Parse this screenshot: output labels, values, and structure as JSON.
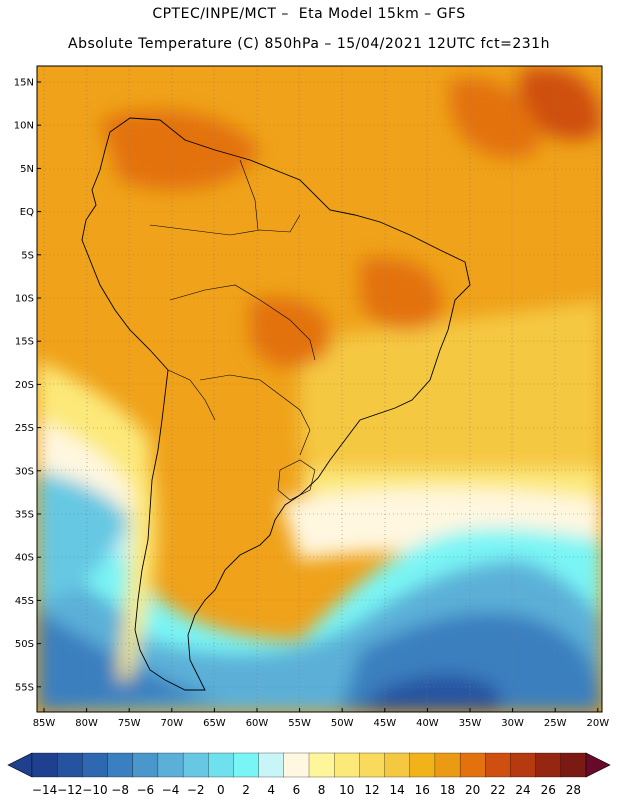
{
  "header": {
    "line1": "CPTEC/INPE/MCT –  Eta Model 15km – GFS",
    "line2": "Absolute Temperature (C) 850hPa – 15/04/2021 12UTC fct=231h"
  },
  "map": {
    "lat_labels": [
      "15N",
      "10N",
      "5N",
      "EQ",
      "5S",
      "10S",
      "15S",
      "20S",
      "25S",
      "30S",
      "35S",
      "40S",
      "45S",
      "50S",
      "55S"
    ],
    "lon_labels": [
      "85W",
      "80W",
      "75W",
      "70W",
      "65W",
      "60W",
      "55W",
      "50W",
      "45W",
      "40W",
      "35W",
      "30W",
      "25W",
      "20W"
    ]
  },
  "colorbar": {
    "labels": [
      "-14",
      "-12",
      "-10",
      "-8",
      "-6",
      "-4",
      "-2",
      "0",
      "2",
      "4",
      "6",
      "8",
      "10",
      "12",
      "14",
      "16",
      "18",
      "20",
      "22",
      "24",
      "26",
      "28"
    ],
    "colors": [
      "#1f3f8f",
      "#2553a0",
      "#2d68b0",
      "#3a7fbf",
      "#4a97cb",
      "#5cb0d8",
      "#66c8e3",
      "#6fe0ee",
      "#7af5f5",
      "#c8f5f8",
      "#fff7e0",
      "#fff59a",
      "#fce97a",
      "#fada5c",
      "#f5c842",
      "#f2b21a",
      "#eb9a14",
      "#e3720e",
      "#cf4f10",
      "#b53a10",
      "#942612",
      "#7a1a12"
    ]
  }
}
